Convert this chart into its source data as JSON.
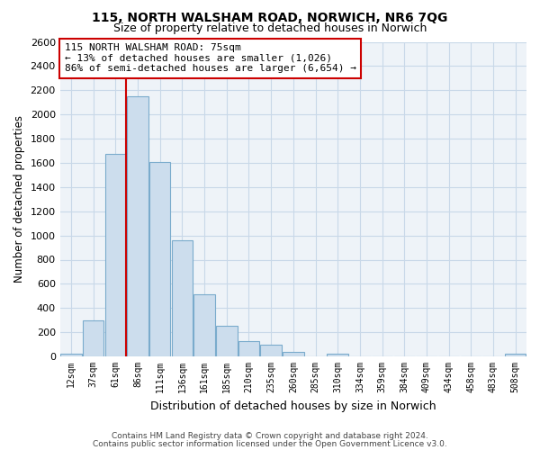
{
  "title": "115, NORTH WALSHAM ROAD, NORWICH, NR6 7QG",
  "subtitle": "Size of property relative to detached houses in Norwich",
  "xlabel": "Distribution of detached houses by size in Norwich",
  "ylabel": "Number of detached properties",
  "bin_labels": [
    "12sqm",
    "37sqm",
    "61sqm",
    "86sqm",
    "111sqm",
    "136sqm",
    "161sqm",
    "185sqm",
    "210sqm",
    "235sqm",
    "260sqm",
    "285sqm",
    "310sqm",
    "334sqm",
    "359sqm",
    "384sqm",
    "409sqm",
    "434sqm",
    "458sqm",
    "483sqm",
    "508sqm"
  ],
  "bar_heights": [
    25,
    300,
    1675,
    2150,
    1610,
    960,
    510,
    255,
    125,
    95,
    35,
    0,
    25,
    0,
    0,
    0,
    0,
    0,
    0,
    0,
    20
  ],
  "bar_color": "#ccdded",
  "bar_edge_color": "#7aabcc",
  "vline_color": "#cc0000",
  "vline_bar_index": 2,
  "annotation_title": "115 NORTH WALSHAM ROAD: 75sqm",
  "annotation_line1": "← 13% of detached houses are smaller (1,026)",
  "annotation_line2": "86% of semi-detached houses are larger (6,654) →",
  "annotation_box_color": "#ffffff",
  "annotation_box_edge": "#cc0000",
  "footer_line1": "Contains HM Land Registry data © Crown copyright and database right 2024.",
  "footer_line2": "Contains public sector information licensed under the Open Government Licence v3.0.",
  "ylim": [
    0,
    2600
  ],
  "yticks": [
    0,
    200,
    400,
    600,
    800,
    1000,
    1200,
    1400,
    1600,
    1800,
    2000,
    2200,
    2400,
    2600
  ],
  "background_color": "#ffffff",
  "grid_color": "#c8d8e8",
  "title_fontsize": 10,
  "subtitle_fontsize": 9
}
